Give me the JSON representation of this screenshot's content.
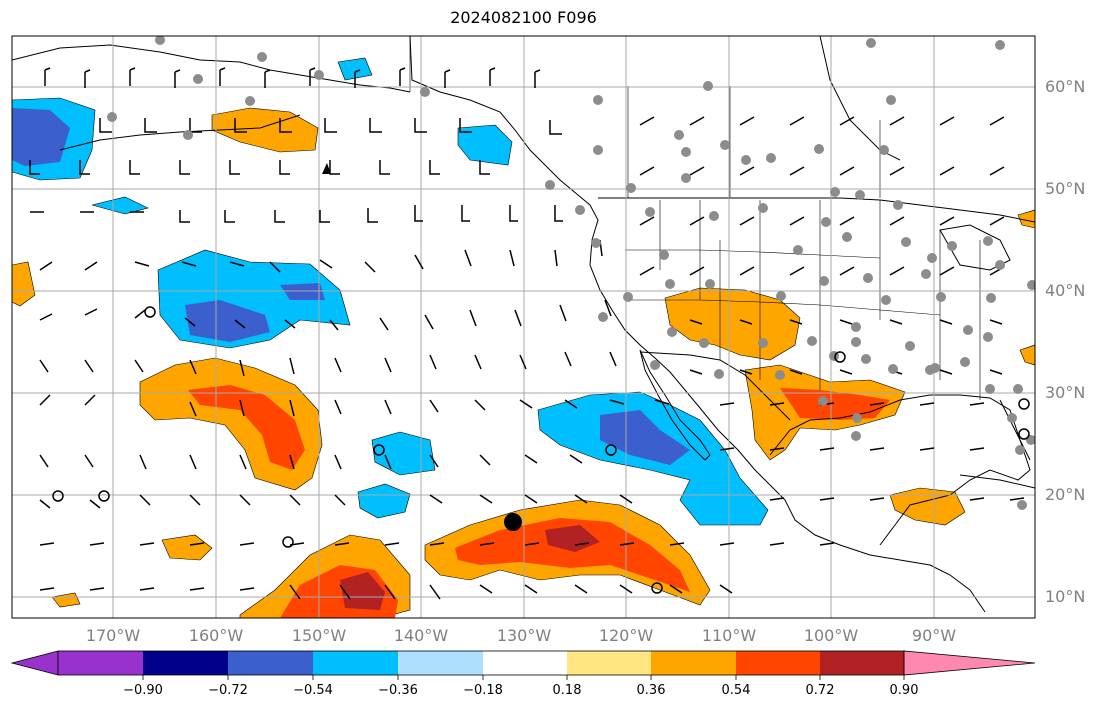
{
  "title": "2024082100 F096",
  "lat_labels": [
    "60°N",
    "50°N",
    "40°N",
    "30°N",
    "20°N",
    "10°N"
  ],
  "lon_labels": [
    "170°W",
    "160°W",
    "150°W",
    "140°W",
    "130°W",
    "120°W",
    "110°W",
    "100°W",
    "90°W"
  ],
  "colorbar": {
    "ticks": [
      "−0.90",
      "−0.72",
      "−0.54",
      "−0.36",
      "−0.18",
      "0.18",
      "0.36",
      "0.54",
      "0.72",
      "0.90"
    ],
    "colors": [
      "#9932cc",
      "#00008b",
      "#3b5fcd",
      "#00bfff",
      "#afdfff",
      "#ffffff",
      "#ffe680",
      "#ffa500",
      "#ff4500",
      "#b22222",
      "#ff88b0"
    ]
  },
  "fill_colors": {
    "land": "#ffffff",
    "grid": "#a9a9a9",
    "neg1": "#afdfff",
    "neg2": "#00bfff",
    "neg3": "#3b5fcd",
    "pos1": "#ffa500",
    "pos2": "#ff4500",
    "pos3": "#b22222"
  }
}
